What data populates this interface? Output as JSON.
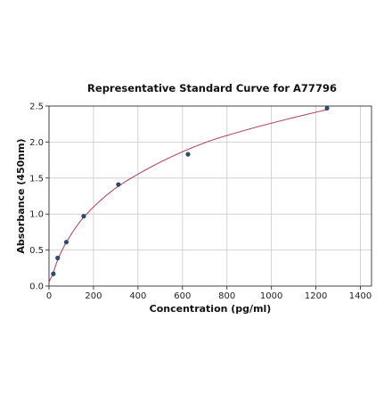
{
  "chart_data": {
    "type": "scatter",
    "title": "Representative Standard Curve for A77796",
    "xlabel": "Concentration (pg/ml)",
    "ylabel": "Absorbance (450nm)",
    "xlim": [
      0,
      1450
    ],
    "ylim": [
      0,
      2.5
    ],
    "xticks": [
      0,
      200,
      400,
      600,
      800,
      1000,
      1200,
      1400
    ],
    "yticks": [
      0.0,
      0.5,
      1.0,
      1.5,
      2.0,
      2.5
    ],
    "xtick_labels": [
      "0",
      "200",
      "400",
      "600",
      "800",
      "1000",
      "1200",
      "1400"
    ],
    "ytick_labels": [
      "0.0",
      "0.5",
      "1.0",
      "1.5",
      "2.0",
      "2.5"
    ],
    "grid": true,
    "series": [
      {
        "kind": "points",
        "x": [
          19.5,
          39,
          78,
          156,
          312,
          625,
          1250
        ],
        "y": [
          0.17,
          0.39,
          0.61,
          0.97,
          1.41,
          1.83,
          2.47
        ],
        "color": "#2f4a6b"
      },
      {
        "kind": "fitted-curve",
        "x": [
          0,
          10,
          20,
          40,
          80,
          160,
          300,
          500,
          700,
          900,
          1100,
          1250
        ],
        "y": [
          0.06,
          0.12,
          0.19,
          0.37,
          0.62,
          0.97,
          1.36,
          1.72,
          1.99,
          2.18,
          2.34,
          2.45
        ],
        "color": "#b04a6e"
      }
    ]
  }
}
